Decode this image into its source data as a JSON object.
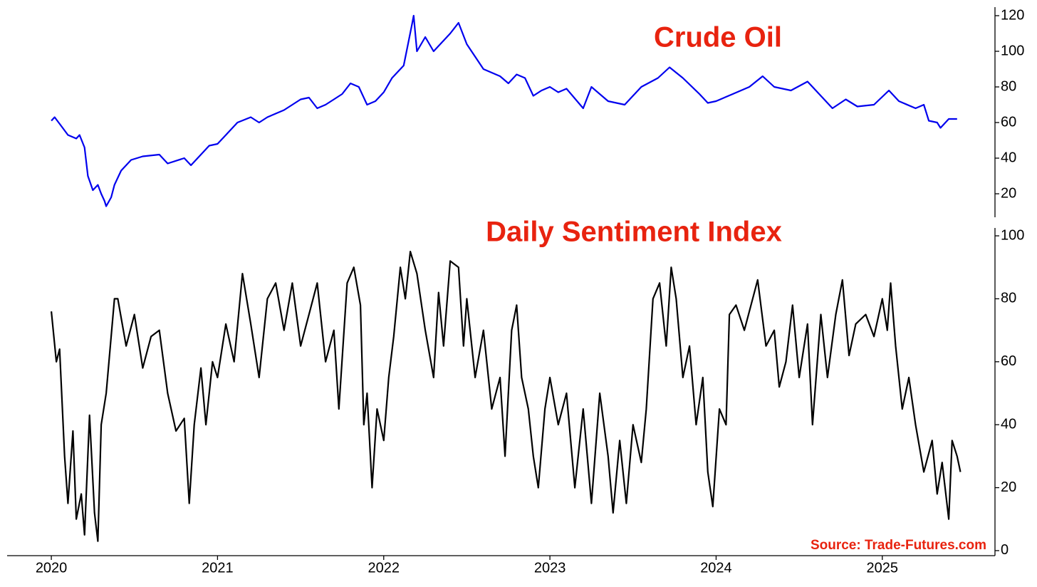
{
  "chart_data": [
    {
      "type": "line",
      "title": "Crude Oil",
      "color": "#0000ee",
      "xlim": [
        2019.734,
        2025.678
      ],
      "ylim": [
        6.8,
        124.8
      ],
      "yticks": [
        20,
        40,
        60,
        80,
        100,
        120
      ],
      "x": [
        2020.0,
        2020.02,
        2020.06,
        2020.1,
        2020.15,
        2020.17,
        2020.2,
        2020.22,
        2020.25,
        2020.28,
        2020.3,
        2020.32,
        2020.33,
        2020.36,
        2020.38,
        2020.42,
        2020.48,
        2020.55,
        2020.65,
        2020.7,
        2020.8,
        2020.84,
        2020.9,
        2020.95,
        2021.0,
        2021.05,
        2021.12,
        2021.2,
        2021.25,
        2021.3,
        2021.4,
        2021.5,
        2021.55,
        2021.6,
        2021.65,
        2021.7,
        2021.75,
        2021.8,
        2021.85,
        2021.9,
        2021.95,
        2022.0,
        2022.05,
        2022.12,
        2022.17,
        2022.18,
        2022.2,
        2022.25,
        2022.3,
        2022.4,
        2022.45,
        2022.5,
        2022.55,
        2022.6,
        2022.7,
        2022.75,
        2022.8,
        2022.85,
        2022.9,
        2022.95,
        2023.0,
        2023.05,
        2023.1,
        2023.2,
        2023.25,
        2023.35,
        2023.45,
        2023.55,
        2023.65,
        2023.72,
        2023.8,
        2023.9,
        2023.95,
        2024.0,
        2024.1,
        2024.2,
        2024.28,
        2024.35,
        2024.45,
        2024.55,
        2024.6,
        2024.7,
        2024.78,
        2024.85,
        2024.95,
        2025.04,
        2025.1,
        2025.2,
        2025.25,
        2025.28,
        2025.33,
        2025.35,
        2025.4,
        2025.45
      ],
      "values": [
        61,
        63,
        58,
        53,
        51,
        53,
        46,
        30,
        22,
        25,
        20,
        16,
        13,
        18,
        25,
        33,
        39,
        41,
        42,
        37,
        40,
        36,
        42,
        47,
        48,
        53,
        60,
        63,
        60,
        63,
        67,
        73,
        74,
        68,
        70,
        73,
        76,
        82,
        80,
        70,
        72,
        77,
        85,
        92,
        115,
        120,
        100,
        108,
        100,
        110,
        116,
        104,
        97,
        90,
        86,
        82,
        87,
        85,
        75,
        78,
        80,
        77,
        79,
        68,
        80,
        72,
        70,
        80,
        85,
        91,
        85,
        76,
        71,
        72,
        76,
        80,
        86,
        80,
        78,
        83,
        78,
        68,
        73,
        69,
        70,
        78,
        72,
        68,
        70,
        61,
        60,
        57,
        62,
        62
      ]
    },
    {
      "type": "line",
      "title": "Daily Sentiment Index",
      "annotation": "Source: Trade-Futures.com",
      "color": "#000000",
      "xlim": [
        2019.734,
        2025.678
      ],
      "xticks": [
        2020,
        2021,
        2022,
        2023,
        2024,
        2025
      ],
      "ylim": [
        -1.6,
        102.5
      ],
      "yticks": [
        0,
        20,
        40,
        60,
        80,
        100
      ],
      "x": [
        2020.0,
        2020.03,
        2020.05,
        2020.08,
        2020.1,
        2020.13,
        2020.15,
        2020.18,
        2020.2,
        2020.23,
        2020.26,
        2020.28,
        2020.3,
        2020.33,
        2020.38,
        2020.4,
        2020.45,
        2020.5,
        2020.55,
        2020.6,
        2020.65,
        2020.7,
        2020.75,
        2020.8,
        2020.83,
        2020.86,
        2020.9,
        2020.93,
        2020.97,
        2021.0,
        2021.05,
        2021.1,
        2021.15,
        2021.2,
        2021.25,
        2021.3,
        2021.35,
        2021.4,
        2021.45,
        2021.5,
        2021.55,
        2021.6,
        2021.65,
        2021.7,
        2021.73,
        2021.78,
        2021.82,
        2021.86,
        2021.88,
        2021.9,
        2021.93,
        2021.96,
        2022.0,
        2022.03,
        2022.06,
        2022.1,
        2022.13,
        2022.16,
        2022.2,
        2022.25,
        2022.3,
        2022.33,
        2022.36,
        2022.4,
        2022.45,
        2022.48,
        2022.5,
        2022.55,
        2022.6,
        2022.65,
        2022.7,
        2022.73,
        2022.77,
        2022.8,
        2022.83,
        2022.87,
        2022.9,
        2022.93,
        2022.97,
        2023.0,
        2023.05,
        2023.1,
        2023.15,
        2023.2,
        2023.25,
        2023.3,
        2023.35,
        2023.38,
        2023.42,
        2023.46,
        2023.5,
        2023.55,
        2023.58,
        2023.62,
        2023.66,
        2023.7,
        2023.73,
        2023.76,
        2023.8,
        2023.84,
        2023.88,
        2023.92,
        2023.95,
        2023.98,
        2024.02,
        2024.06,
        2024.08,
        2024.12,
        2024.17,
        2024.22,
        2024.25,
        2024.3,
        2024.35,
        2024.38,
        2024.42,
        2024.46,
        2024.5,
        2024.55,
        2024.58,
        2024.63,
        2024.67,
        2024.72,
        2024.76,
        2024.8,
        2024.84,
        2024.9,
        2024.95,
        2025.0,
        2025.03,
        2025.05,
        2025.08,
        2025.12,
        2025.16,
        2025.2,
        2025.25,
        2025.3,
        2025.33,
        2025.36,
        2025.4,
        2025.42,
        2025.45,
        2025.47
      ],
      "values": [
        76,
        60,
        64,
        30,
        15,
        38,
        10,
        18,
        5,
        43,
        12,
        3,
        40,
        50,
        80,
        80,
        65,
        75,
        58,
        68,
        70,
        50,
        38,
        42,
        15,
        40,
        58,
        40,
        60,
        55,
        72,
        60,
        88,
        72,
        55,
        80,
        85,
        70,
        85,
        65,
        75,
        85,
        60,
        70,
        45,
        85,
        90,
        78,
        40,
        50,
        20,
        45,
        35,
        55,
        68,
        90,
        80,
        95,
        88,
        70,
        55,
        82,
        65,
        92,
        90,
        65,
        80,
        55,
        70,
        45,
        55,
        30,
        70,
        78,
        55,
        45,
        30,
        20,
        45,
        55,
        40,
        50,
        20,
        45,
        15,
        50,
        30,
        12,
        35,
        15,
        40,
        28,
        45,
        80,
        85,
        65,
        90,
        80,
        55,
        65,
        40,
        55,
        25,
        14,
        45,
        40,
        75,
        78,
        70,
        80,
        86,
        65,
        70,
        52,
        60,
        78,
        55,
        72,
        40,
        75,
        55,
        75,
        86,
        62,
        72,
        75,
        68,
        80,
        70,
        85,
        65,
        45,
        55,
        40,
        25,
        35,
        18,
        28,
        10,
        35,
        30,
        25
      ]
    }
  ]
}
